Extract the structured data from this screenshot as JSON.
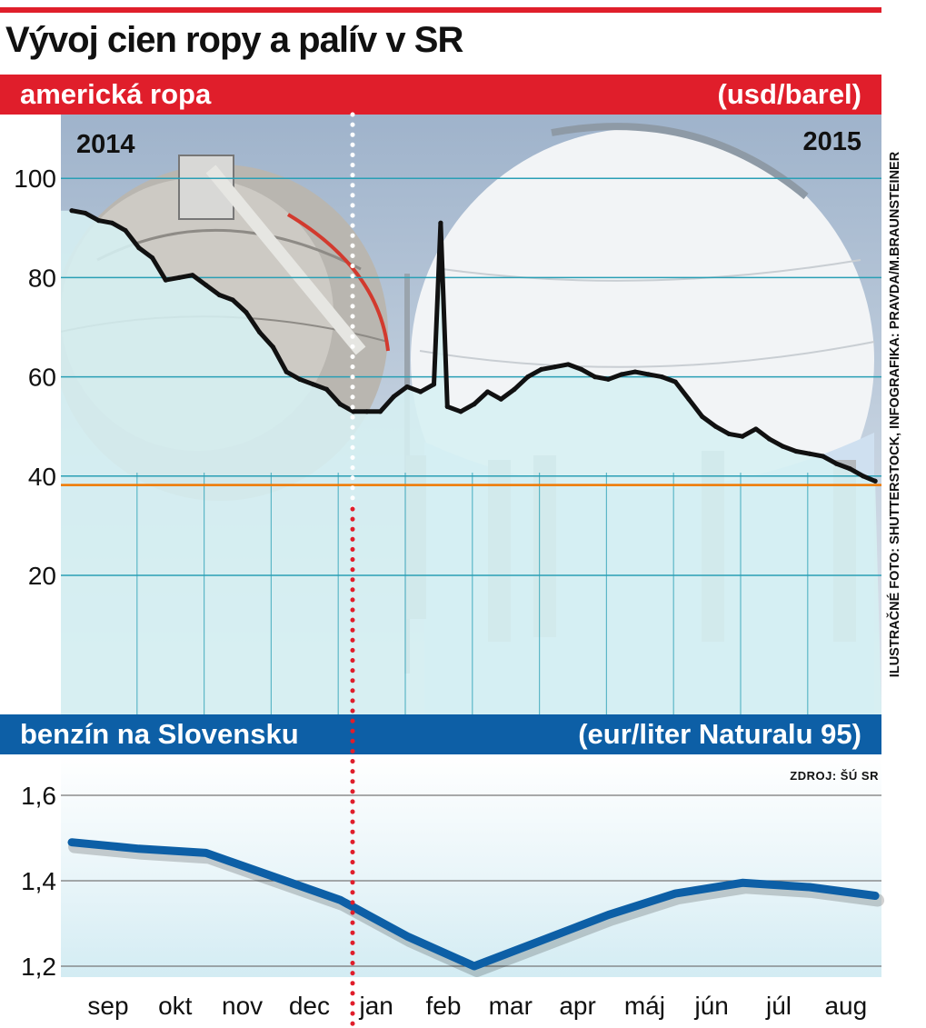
{
  "title": "Vývoj cien ropy a palív v SR",
  "credit": "ILUSTRAČNÉ FOTO: SHUTTERSTOCK, INFOGRAFIKA: PRAVDA/M.BRAUNSTEINER",
  "source": "ZDROJ: ŠÚ SR",
  "colors": {
    "red": "#e01e2b",
    "blue": "#0d5fa6",
    "oil_line": "#111111",
    "gasoline_line": "#0d5fa6",
    "ref_line": "#f07800"
  },
  "chart_data": [
    {
      "type": "line",
      "title": "americká ropa",
      "unit": "(usd/barel)",
      "year_labels": [
        "2014",
        "2015"
      ],
      "ylim": [
        15,
        120
      ],
      "yticks": [
        20,
        40,
        60,
        80,
        100
      ],
      "reference_line": 38.2,
      "x": [
        0,
        0.2,
        0.4,
        0.6,
        0.8,
        1.0,
        1.2,
        1.4,
        1.6,
        1.8,
        2.0,
        2.2,
        2.4,
        2.6,
        2.8,
        3.0,
        3.2,
        3.4,
        3.6,
        3.8,
        4.0,
        4.2,
        4.4,
        4.6,
        4.8,
        5.0,
        5.2,
        5.4,
        5.5,
        5.6,
        5.8,
        6.0,
        6.2,
        6.4,
        6.6,
        6.8,
        7.0,
        7.2,
        7.4,
        7.6,
        7.8,
        8.0,
        8.2,
        8.4,
        8.6,
        8.8,
        9.0,
        9.2,
        9.4,
        9.6,
        9.8,
        10.0,
        10.2,
        10.4,
        10.6,
        10.8,
        11.0,
        11.2,
        11.4,
        11.6,
        11.8,
        11.98
      ],
      "series": [
        {
          "values": [
            93.5,
            93,
            91.5,
            91,
            89.5,
            86,
            84,
            79.5,
            80,
            80.5,
            78.5,
            76.5,
            75.5,
            73,
            69,
            66,
            61,
            59.5,
            58.5,
            57.5,
            54.5,
            53,
            53,
            53,
            56,
            58,
            57,
            58.5,
            91,
            54,
            53,
            54.5,
            57,
            55.5,
            57.5,
            60,
            61.5,
            62,
            62.5,
            61.5,
            60,
            59.5,
            60.5,
            61,
            60.5,
            60,
            59,
            55.5,
            52,
            50,
            48.5,
            48,
            49.5,
            47.5,
            46,
            45,
            44.5,
            44,
            42.5,
            41.5,
            40,
            39
          ]
        }
      ]
    },
    {
      "type": "line",
      "title": "benzín na Slovensku",
      "unit": "(eur/liter Naturalu 95)",
      "ylim": [
        1.17,
        1.65
      ],
      "yticks": [
        "1,2",
        "1,4",
        "1,6"
      ],
      "ytick_values": [
        1.2,
        1.4,
        1.6
      ],
      "categories": [
        "sep",
        "okt",
        "nov",
        "dec",
        "jan",
        "feb",
        "mar",
        "apr",
        "máj",
        "jún",
        "júl",
        "aug"
      ],
      "x": [
        0,
        1,
        2,
        3,
        4,
        5,
        6,
        7,
        8,
        9,
        10,
        11,
        11.98
      ],
      "series": [
        {
          "values": [
            1.49,
            1.475,
            1.465,
            1.41,
            1.355,
            1.27,
            1.2,
            1.26,
            1.32,
            1.37,
            1.395,
            1.385,
            1.365
          ]
        }
      ]
    }
  ]
}
